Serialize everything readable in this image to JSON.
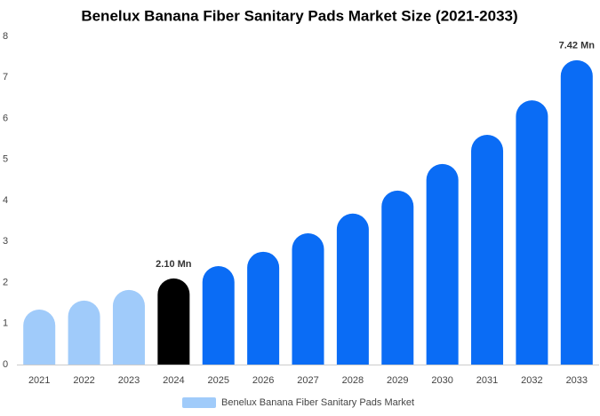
{
  "chart_data": {
    "type": "bar",
    "title": "Benelux Banana Fiber Sanitary Pads Market Size (2021-2033)",
    "categories": [
      "2021",
      "2022",
      "2023",
      "2024",
      "2025",
      "2026",
      "2027",
      "2028",
      "2029",
      "2030",
      "2031",
      "2032",
      "2033"
    ],
    "series": [
      {
        "name": "Benelux Banana Fiber Sanitary Pads Market",
        "color": "#a0cbfa",
        "values": [
          1.34,
          1.56,
          1.82,
          2.1,
          2.4,
          2.75,
          3.2,
          3.68,
          4.24,
          4.89,
          5.6,
          6.44,
          7.42
        ],
        "value_labels": [
          null,
          null,
          null,
          "2.10 Mn",
          null,
          null,
          null,
          null,
          null,
          null,
          null,
          null,
          "7.42 Mn"
        ],
        "colors": [
          "#a0cbfa",
          "#a0cbfa",
          "#a0cbfa",
          "#000000",
          "#0a6cf5",
          "#0a6cf5",
          "#0a6cf5",
          "#0a6cf5",
          "#0a6cf5",
          "#0a6cf5",
          "#0a6cf5",
          "#0a6cf5",
          "#0a6cf5"
        ]
      }
    ],
    "ylim": [
      0,
      8
    ],
    "yticks": [
      0,
      1,
      2,
      3,
      4,
      5,
      6,
      7,
      8
    ],
    "grid": false,
    "legend": "bottom"
  }
}
